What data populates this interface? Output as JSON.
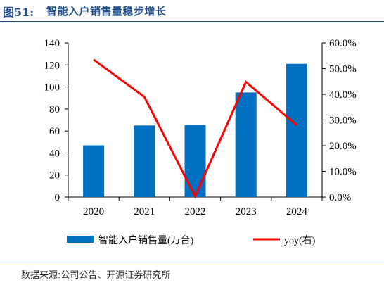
{
  "figure": {
    "number": "图51:",
    "title": "智能入户销售量稳步增长",
    "source": "数据来源:公司公告、开源证券研究所"
  },
  "chart_data": {
    "type": "bar",
    "categories": [
      "2020",
      "2021",
      "2022",
      "2023",
      "2024"
    ],
    "series": [
      {
        "name": "智能入户销售量(万台)",
        "type": "bar",
        "axis": "left",
        "values": [
          47,
          65,
          65.5,
          95,
          121
        ]
      },
      {
        "name": "yoy(右)",
        "type": "line",
        "axis": "right",
        "values": [
          53.5,
          39,
          0.3,
          44.8,
          28
        ]
      }
    ],
    "left_axis": {
      "ylim": [
        0,
        140
      ],
      "ticks": [
        "0",
        "20",
        "40",
        "60",
        "80",
        "100",
        "120",
        "140"
      ]
    },
    "right_axis": {
      "ylim": [
        0,
        60
      ],
      "ticks": [
        "0.0%",
        "10.0%",
        "20.0%",
        "30.0%",
        "40.0%",
        "50.0%",
        "60.0%"
      ]
    },
    "grid": false,
    "legend_position": "bottom",
    "colors": {
      "bar": "#0070C0",
      "line": "#FF0000",
      "axis": "#000000"
    }
  }
}
